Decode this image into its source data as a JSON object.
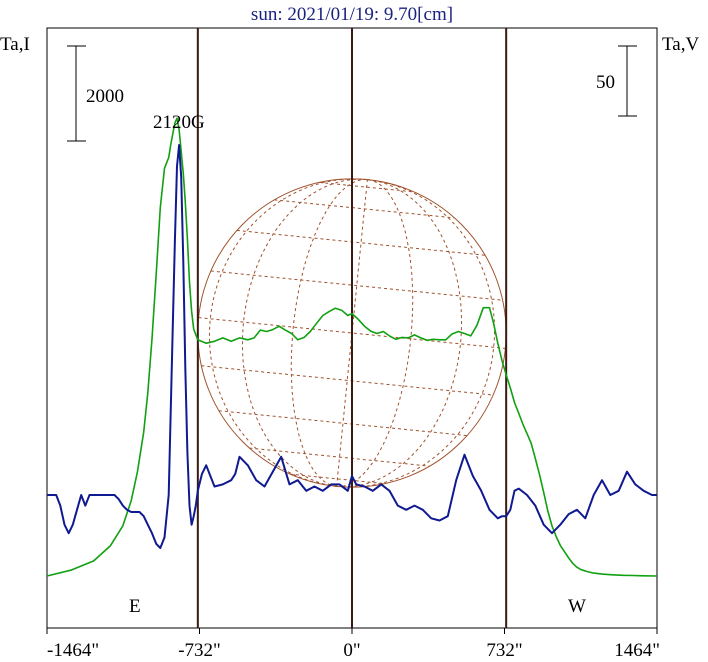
{
  "title": "sun: 2021/01/19: 9.70[cm]",
  "left_axis_label": "Ta,I",
  "right_axis_label": "Ta,V",
  "left_scale_label": "2000",
  "right_scale_label": "50",
  "left_scale_value": 2000,
  "right_scale_value": 50,
  "annotation": "2120G",
  "east_label": "E",
  "west_label": "W",
  "colors": {
    "intensity": "#11a011",
    "polarization": "#101a90",
    "grid": "#a0522d",
    "limb_lines": "#3a1a10",
    "title": "#1a237e"
  },
  "chart_data": {
    "type": "line",
    "title": "sun: 2021/01/19: 9.70[cm]",
    "x_unit": "arcsec",
    "xlim": [
      -1464,
      1464
    ],
    "x_ticks": [
      -1464,
      -732,
      0,
      732,
      1464
    ],
    "x_tick_labels": [
      "-1464\"",
      "-732\"",
      "0\"",
      "732\"",
      "1464\""
    ],
    "limb_x": [
      -740,
      0,
      740
    ],
    "grid": false,
    "intensity_ylim": [
      0,
      10000
    ],
    "polarization_ylim": [
      -250,
      190
    ],
    "series": [
      {
        "name": "Ta,I",
        "axis": "left",
        "x": [
          -1464,
          -1350,
          -1240,
          -1160,
          -1100,
          -1060,
          -1030,
          -1000,
          -980,
          -960,
          -940,
          -920,
          -900,
          -880,
          -870,
          -860,
          -850,
          -840,
          -830,
          -820,
          -810,
          -800,
          -790,
          -780,
          -770,
          -760,
          -740,
          -700,
          -660,
          -620,
          -580,
          -540,
          -500,
          -470,
          -440,
          -410,
          -380,
          -350,
          -320,
          -290,
          -260,
          -230,
          -200,
          -170,
          -140,
          -110,
          -80,
          -50,
          -20,
          0,
          30,
          60,
          90,
          120,
          150,
          180,
          210,
          240,
          270,
          300,
          330,
          360,
          390,
          420,
          450,
          480,
          510,
          540,
          570,
          600,
          630,
          660,
          680,
          700,
          720,
          740,
          760,
          780,
          800,
          820,
          840,
          860,
          880,
          900,
          920,
          940,
          960,
          980,
          1000,
          1020,
          1040,
          1060,
          1080,
          1100,
          1130,
          1160,
          1200,
          1250,
          1300,
          1350,
          1400,
          1464
        ],
        "values": [
          0,
          120,
          310,
          620,
          1030,
          1550,
          2140,
          2960,
          3770,
          4880,
          6210,
          7580,
          8390,
          8610,
          8880,
          9100,
          9320,
          9420,
          9190,
          8730,
          8280,
          7690,
          6940,
          6040,
          5450,
          5080,
          4860,
          4790,
          4830,
          4900,
          4830,
          4900,
          4860,
          4900,
          5060,
          5030,
          5070,
          5140,
          5060,
          4990,
          4860,
          4910,
          5030,
          5200,
          5360,
          5440,
          5510,
          5470,
          5360,
          5400,
          5280,
          5140,
          5040,
          4990,
          5030,
          4940,
          4870,
          4910,
          4900,
          4960,
          4900,
          4850,
          4870,
          4860,
          4860,
          4980,
          5030,
          4990,
          4940,
          5160,
          5520,
          5520,
          5190,
          4790,
          4430,
          4140,
          3870,
          3570,
          3350,
          3130,
          2930,
          2730,
          2420,
          2090,
          1720,
          1340,
          1030,
          810,
          630,
          500,
          370,
          260,
          180,
          130,
          90,
          60,
          40,
          25,
          15,
          10,
          5,
          0
        ]
      },
      {
        "name": "Ta,V",
        "axis": "right",
        "x": [
          -1464,
          -1440,
          -1420,
          -1400,
          -1380,
          -1360,
          -1340,
          -1320,
          -1300,
          -1280,
          -1260,
          -1240,
          -1220,
          -1200,
          -1180,
          -1160,
          -1140,
          -1120,
          -1100,
          -1080,
          -1060,
          -1040,
          -1020,
          -1000,
          -980,
          -960,
          -940,
          -920,
          -900,
          -880,
          -860,
          -850,
          -840,
          -830,
          -820,
          -810,
          -800,
          -790,
          -780,
          -770,
          -760,
          -750,
          -740,
          -720,
          -700,
          -680,
          -660,
          -620,
          -580,
          -560,
          -540,
          -500,
          -460,
          -420,
          -380,
          -340,
          -300,
          -260,
          -220,
          -180,
          -140,
          -100,
          -60,
          -20,
          0,
          20,
          60,
          100,
          140,
          180,
          220,
          260,
          300,
          340,
          380,
          420,
          460,
          500,
          540,
          580,
          620,
          660,
          700,
          720,
          740,
          760,
          780,
          800,
          840,
          880,
          920,
          960,
          1000,
          1040,
          1080,
          1120,
          1160,
          1200,
          1240,
          1280,
          1320,
          1360,
          1400,
          1440,
          1464
        ],
        "values": [
          0,
          0,
          0,
          -5,
          -14,
          -18,
          -14,
          -7,
          0,
          -5,
          0,
          0,
          0,
          0,
          0,
          0,
          0,
          -2,
          -5,
          -7,
          -8,
          -8,
          -8,
          -10,
          -14,
          -18,
          -23,
          -25,
          -20,
          0,
          80,
          120,
          155,
          165,
          150,
          110,
          60,
          20,
          -5,
          -14,
          -10,
          -5,
          2,
          10,
          14,
          9,
          4,
          5,
          7,
          10,
          18,
          14,
          7,
          4,
          11,
          18,
          5,
          7,
          2,
          4,
          2,
          5,
          5,
          2,
          9,
          5,
          4,
          2,
          5,
          2,
          -5,
          -7,
          -5,
          -7,
          -11,
          -12,
          -10,
          7,
          19,
          9,
          2,
          -7,
          -11,
          -10,
          -10,
          -7,
          2,
          3,
          0,
          -5,
          -14,
          -18,
          -14,
          -9,
          -7,
          -11,
          0,
          7,
          0,
          2,
          11,
          5,
          2,
          0,
          0
        ]
      }
    ]
  }
}
